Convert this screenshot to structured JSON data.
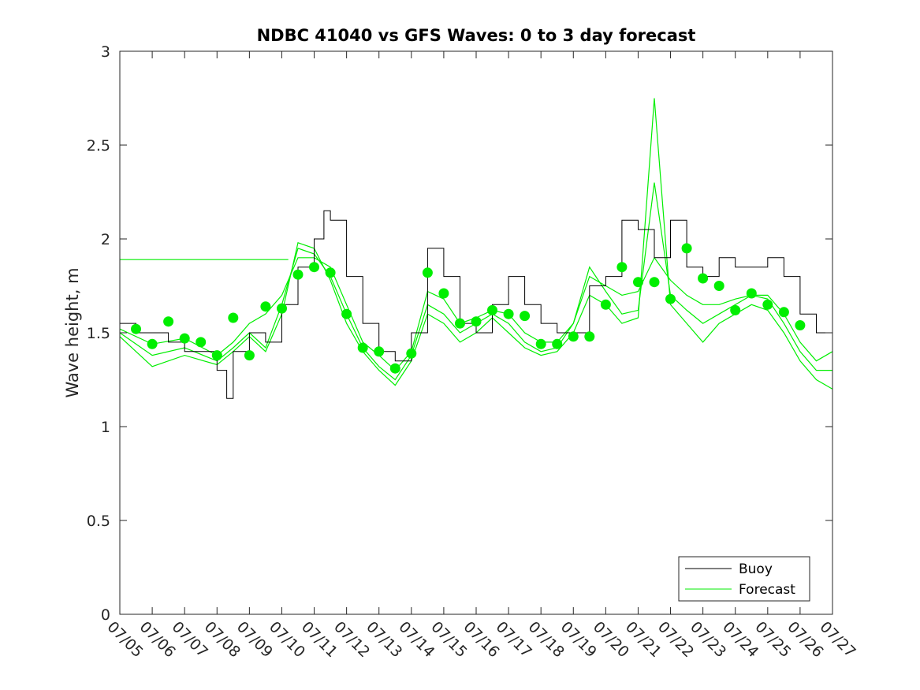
{
  "chart_data": {
    "type": "line",
    "title": "NDBC 41040 vs GFS Waves: 0 to 3 day forecast",
    "xlabel": "",
    "ylabel": "Wave height, m",
    "xlim": [
      0,
      22
    ],
    "ylim": [
      0,
      3
    ],
    "x_tick_labels": [
      "07/05",
      "07/06",
      "07/07",
      "07/08",
      "07/09",
      "07/10",
      "07/11",
      "07/12",
      "07/13",
      "07/14",
      "07/15",
      "07/16",
      "07/17",
      "07/18",
      "07/19",
      "07/20",
      "07/21",
      "07/22",
      "07/23",
      "07/24",
      "07/25",
      "07/26",
      "07/27"
    ],
    "y_ticks": [
      0,
      0.5,
      1,
      1.5,
      2,
      2.5,
      3
    ],
    "y_tick_labels": [
      "0",
      "0.5",
      "1",
      "1.5",
      "2",
      "2.5",
      "3"
    ],
    "legend": {
      "position": "bottom-right",
      "entries": [
        "Buoy",
        "Forecast"
      ]
    },
    "colors": {
      "buoy": "#000000",
      "forecast": "#00ee00"
    },
    "buoy": {
      "name": "Buoy",
      "x": [
        0,
        0.5,
        1,
        1.5,
        2,
        2.5,
        3,
        3.3,
        3.5,
        4,
        4.5,
        5,
        5.5,
        6,
        6.3,
        6.5,
        7,
        7.5,
        8,
        8.5,
        9,
        9.5,
        10,
        10.5,
        11,
        11.5,
        12,
        12.5,
        13,
        13.5,
        14,
        14.5,
        15,
        15.5,
        16,
        16.5,
        17,
        17.5,
        18,
        18.5,
        19,
        19.5,
        20,
        20.5,
        21,
        21.5,
        22
      ],
      "y": [
        1.55,
        1.5,
        1.5,
        1.45,
        1.4,
        1.4,
        1.3,
        1.15,
        1.4,
        1.5,
        1.45,
        1.65,
        1.85,
        2.0,
        2.15,
        2.1,
        1.8,
        1.55,
        1.4,
        1.35,
        1.5,
        1.95,
        1.8,
        1.55,
        1.5,
        1.65,
        1.8,
        1.65,
        1.55,
        1.5,
        1.5,
        1.75,
        1.8,
        2.1,
        2.05,
        1.9,
        2.1,
        1.85,
        1.8,
        1.9,
        1.85,
        1.85,
        1.9,
        1.8,
        1.6,
        1.5,
        1.45
      ]
    },
    "forecast_lines": [
      {
        "name": "Forecast",
        "x": [
          0,
          1,
          2,
          3,
          3.5,
          4,
          4.5,
          5,
          5.5,
          6,
          6.5,
          7,
          7.5,
          8,
          8.5,
          9,
          9.5,
          10,
          10.5,
          11,
          11.5,
          12,
          12.5,
          13,
          13.5,
          14,
          14.5,
          15,
          15.5,
          16,
          16.5,
          17,
          17.5,
          18,
          18.5,
          19,
          19.5,
          20,
          20.5,
          21,
          21.5,
          22
        ],
        "y": [
          1.52,
          1.44,
          1.47,
          1.38,
          1.45,
          1.55,
          1.6,
          1.7,
          1.9,
          1.9,
          1.85,
          1.65,
          1.45,
          1.38,
          1.3,
          1.4,
          1.72,
          1.68,
          1.55,
          1.58,
          1.62,
          1.6,
          1.5,
          1.45,
          1.45,
          1.55,
          1.8,
          1.75,
          1.7,
          1.72,
          1.9,
          1.78,
          1.7,
          1.65,
          1.65,
          1.68,
          1.7,
          1.7,
          1.6,
          1.45,
          1.35,
          1.4
        ]
      },
      {
        "name": "",
        "x": [
          0,
          1,
          2,
          3,
          3.5,
          4,
          4.5,
          5,
          5.5,
          6,
          6.5,
          7,
          7.5,
          8,
          8.5,
          9,
          9.5,
          10,
          10.5,
          11,
          11.5,
          12,
          12.5,
          13,
          13.5,
          14,
          14.5,
          15,
          15.5,
          16,
          16.5,
          17,
          17.5,
          18,
          18.5,
          19,
          19.5,
          20,
          20.5,
          21,
          21.5,
          22
        ],
        "y": [
          1.5,
          1.38,
          1.42,
          1.35,
          1.42,
          1.5,
          1.42,
          1.65,
          1.95,
          1.92,
          1.8,
          1.6,
          1.42,
          1.32,
          1.25,
          1.38,
          1.65,
          1.6,
          1.5,
          1.55,
          1.6,
          1.55,
          1.45,
          1.4,
          1.42,
          1.55,
          1.85,
          1.72,
          1.6,
          1.62,
          2.3,
          1.7,
          1.62,
          1.55,
          1.6,
          1.65,
          1.7,
          1.68,
          1.55,
          1.4,
          1.3,
          1.3
        ]
      },
      {
        "name": "",
        "x": [
          0,
          1,
          2,
          3,
          3.5,
          4,
          4.5,
          5,
          5.5,
          6,
          6.5,
          7,
          7.5,
          8,
          8.5,
          9,
          9.5,
          10,
          10.5,
          11,
          11.5,
          12,
          12.5,
          13,
          13.5,
          14,
          14.5,
          15,
          15.5,
          16,
          16.5,
          17,
          17.5,
          18,
          18.5,
          19,
          19.5,
          20,
          20.5,
          21,
          21.5,
          22
        ],
        "y": [
          1.48,
          1.32,
          1.38,
          1.33,
          1.4,
          1.48,
          1.4,
          1.6,
          1.98,
          1.95,
          1.78,
          1.55,
          1.4,
          1.3,
          1.22,
          1.35,
          1.6,
          1.55,
          1.45,
          1.5,
          1.58,
          1.5,
          1.42,
          1.38,
          1.4,
          1.5,
          1.7,
          1.65,
          1.55,
          1.58,
          2.75,
          1.65,
          1.55,
          1.45,
          1.55,
          1.6,
          1.65,
          1.62,
          1.5,
          1.35,
          1.25,
          1.2
        ]
      }
    ],
    "forecast_flat_segment": {
      "x": [
        0,
        5.2
      ],
      "y": [
        1.89,
        1.89
      ]
    },
    "markers": {
      "x": [
        0.5,
        1,
        1.5,
        2,
        2.5,
        3,
        3.5,
        4,
        4.5,
        5,
        5.5,
        6,
        6.5,
        7,
        7.5,
        8,
        8.5,
        9,
        9.5,
        10,
        10.5,
        11,
        11.5,
        12,
        12.5,
        13,
        13.5,
        14,
        14.5,
        15,
        15.5,
        16,
        16.5,
        17,
        17.5,
        18,
        18.5,
        19,
        19.5,
        20,
        20.5,
        21
      ],
      "y": [
        1.52,
        1.44,
        1.56,
        1.47,
        1.45,
        1.38,
        1.58,
        1.38,
        1.64,
        1.63,
        1.81,
        1.85,
        1.82,
        1.6,
        1.42,
        1.4,
        1.31,
        1.39,
        1.82,
        1.71,
        1.55,
        1.56,
        1.62,
        1.6,
        1.59,
        1.44,
        1.44,
        1.48,
        1.48,
        1.65,
        1.85,
        1.77,
        1.77,
        1.68,
        1.95,
        1.79,
        1.75,
        1.62,
        1.71,
        1.65,
        1.61,
        1.54
      ]
    }
  }
}
